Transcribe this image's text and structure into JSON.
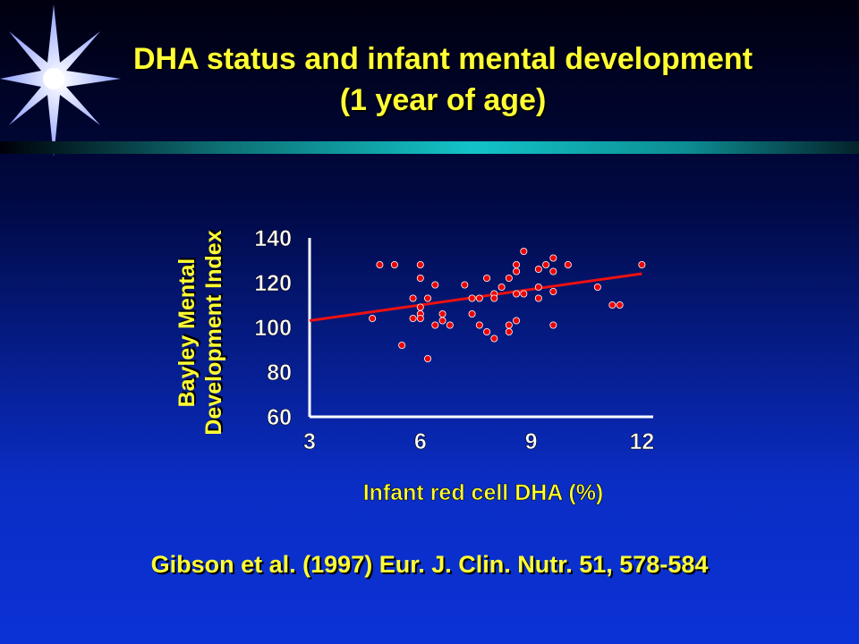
{
  "slide": {
    "title_line1": "DHA status and infant mental development",
    "title_line2": "(1 year of age)",
    "citation": "Gibson et al. (1997) Eur. J. Clin. Nutr. 51, 578-584"
  },
  "colors": {
    "title": "#ffff33",
    "points": "#ee0000",
    "trend_line": "#ee1111",
    "axes": "#ffffff"
  },
  "chart_data": {
    "type": "scatter",
    "title": "DHA status and infant mental development (1 year of age)",
    "xlabel": "Infant red cell DHA (%)",
    "ylabel_line1": "Bayley Mental",
    "ylabel_line2": "Development Index",
    "xlim": [
      3,
      12.5
    ],
    "ylim": [
      60,
      140
    ],
    "x_ticks": [
      3,
      6,
      9,
      12
    ],
    "y_ticks": [
      60,
      80,
      100,
      120,
      140
    ],
    "grid": false,
    "legend": "none",
    "points": [
      {
        "x": 4.9,
        "y": 128
      },
      {
        "x": 5.3,
        "y": 128
      },
      {
        "x": 6.0,
        "y": 128
      },
      {
        "x": 4.7,
        "y": 104
      },
      {
        "x": 5.5,
        "y": 92
      },
      {
        "x": 5.8,
        "y": 113
      },
      {
        "x": 5.8,
        "y": 104
      },
      {
        "x": 6.0,
        "y": 122
      },
      {
        "x": 6.0,
        "y": 109
      },
      {
        "x": 6.0,
        "y": 106
      },
      {
        "x": 6.0,
        "y": 104
      },
      {
        "x": 6.2,
        "y": 113
      },
      {
        "x": 6.2,
        "y": 86
      },
      {
        "x": 6.4,
        "y": 119
      },
      {
        "x": 6.4,
        "y": 101
      },
      {
        "x": 6.6,
        "y": 106
      },
      {
        "x": 6.6,
        "y": 103
      },
      {
        "x": 6.8,
        "y": 101
      },
      {
        "x": 7.2,
        "y": 119
      },
      {
        "x": 7.4,
        "y": 113
      },
      {
        "x": 7.4,
        "y": 106
      },
      {
        "x": 7.6,
        "y": 113
      },
      {
        "x": 7.6,
        "y": 101
      },
      {
        "x": 7.8,
        "y": 122
      },
      {
        "x": 7.8,
        "y": 98
      },
      {
        "x": 8.0,
        "y": 115
      },
      {
        "x": 8.0,
        "y": 113
      },
      {
        "x": 8.0,
        "y": 95
      },
      {
        "x": 8.2,
        "y": 118
      },
      {
        "x": 8.4,
        "y": 122
      },
      {
        "x": 8.4,
        "y": 101
      },
      {
        "x": 8.4,
        "y": 98
      },
      {
        "x": 8.6,
        "y": 128
      },
      {
        "x": 8.6,
        "y": 125
      },
      {
        "x": 8.6,
        "y": 115
      },
      {
        "x": 8.6,
        "y": 103
      },
      {
        "x": 8.8,
        "y": 134
      },
      {
        "x": 8.8,
        "y": 115
      },
      {
        "x": 9.2,
        "y": 126
      },
      {
        "x": 9.2,
        "y": 118
      },
      {
        "x": 9.2,
        "y": 113
      },
      {
        "x": 9.4,
        "y": 128
      },
      {
        "x": 9.6,
        "y": 131
      },
      {
        "x": 9.6,
        "y": 125
      },
      {
        "x": 9.6,
        "y": 116
      },
      {
        "x": 9.6,
        "y": 101
      },
      {
        "x": 10.0,
        "y": 128
      },
      {
        "x": 10.8,
        "y": 118
      },
      {
        "x": 11.2,
        "y": 110
      },
      {
        "x": 11.4,
        "y": 110
      },
      {
        "x": 12.0,
        "y": 128
      }
    ],
    "trend_line": {
      "x": [
        3,
        12
      ],
      "y": [
        103,
        124
      ]
    }
  }
}
